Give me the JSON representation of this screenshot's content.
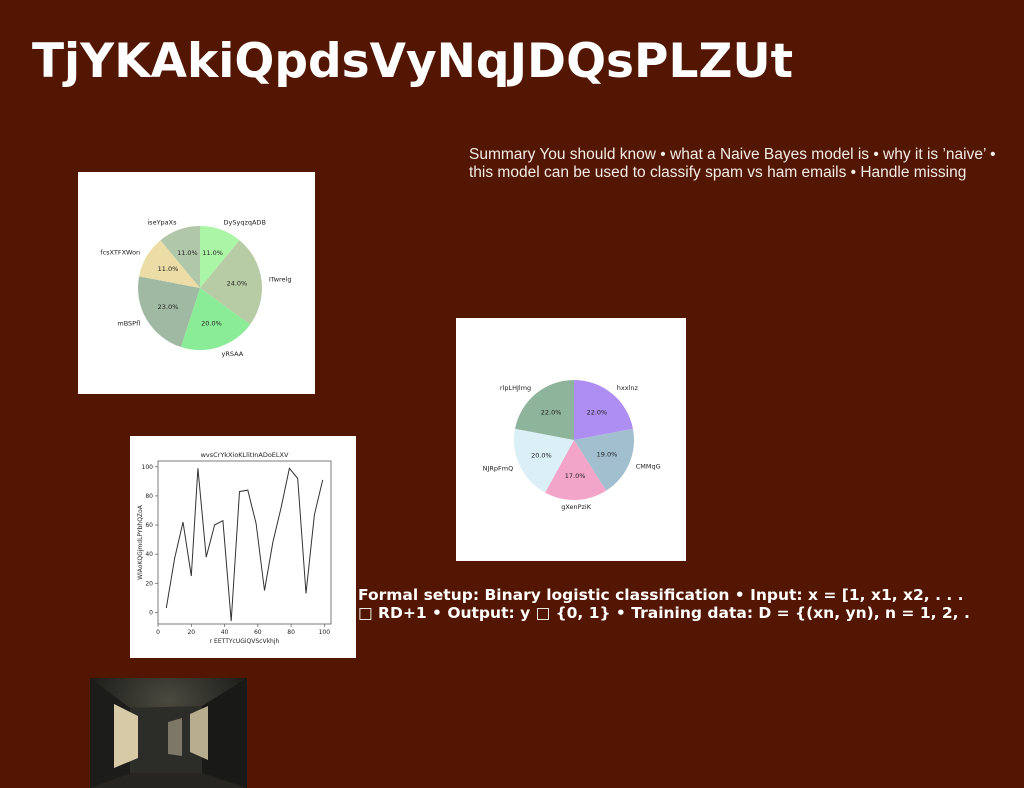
{
  "title": "TjYKAkiQpdsVyNqJDQsPLZUt",
  "summary_lines": [
    "Summary You should know • what a Naive Bayes model is • why it is ’naive’ •",
    "this model can be used to classify spam vs ham emails • Handle missing"
  ],
  "formal_lines": [
    "Formal setup: Binary logistic classification • Input: x = [1, x1, x2, . . .",
    "□ RD+1 • Output: y □ {0, 1} • Training data: D = {(xn, yn), n = 1, 2, ."
  ],
  "chart_data": [
    {
      "type": "pie",
      "title": "",
      "slices": [
        {
          "label": "DySyqzqADB",
          "value": 11.0,
          "pct_label": "11.0%",
          "color": "#aaf5a6"
        },
        {
          "label": "ITwrelg",
          "value": 24.0,
          "pct_label": "24.0%",
          "color": "#b7cca4"
        },
        {
          "label": "yRSAA",
          "value": 20.0,
          "pct_label": "20.0%",
          "color": "#8bec98"
        },
        {
          "label": "mBSPfl",
          "value": 23.0,
          "pct_label": "23.0%",
          "color": "#a0b9a2"
        },
        {
          "label": "fcsXTFXWon",
          "value": 11.0,
          "pct_label": "11.0%",
          "color": "#ecdda6"
        },
        {
          "label": "iseYpaXs",
          "value": 11.0,
          "pct_label": "11.0%",
          "color": "#b0c7a9"
        }
      ]
    },
    {
      "type": "pie",
      "title": "",
      "slices": [
        {
          "label": "hxxlnz",
          "value": 22.0,
          "pct_label": "22.0%",
          "color": "#ae8ef2"
        },
        {
          "label": "CMMqG",
          "value": 19.0,
          "pct_label": "19.0%",
          "color": "#a1bfcf"
        },
        {
          "label": "gXenPziK",
          "value": 17.0,
          "pct_label": "17.0%",
          "color": "#f2a5c8"
        },
        {
          "label": "NJRpFmQ",
          "value": 20.0,
          "pct_label": "20.0%",
          "color": "#dbeff7"
        },
        {
          "label": "rlpLHJlmg",
          "value": 22.0,
          "pct_label": "22.0%",
          "color": "#8fb49c"
        }
      ]
    },
    {
      "type": "line",
      "title": "wvsCrYkXioKLlitInADoELXV",
      "xlabel": "r EETTYcUGiQVScVkhjh",
      "ylabel": "WlAoKQGjmdLPYbhQZoA",
      "xlim": [
        0,
        104
      ],
      "ylim": [
        -8,
        104
      ],
      "xticks": [
        0,
        20,
        40,
        60,
        80,
        100
      ],
      "yticks": [
        0,
        20,
        40,
        60,
        80,
        100
      ],
      "grid": false,
      "series": [
        {
          "color": "#333333",
          "x": [
            5,
            10,
            15,
            20,
            24,
            29,
            34,
            39,
            44,
            49,
            54,
            59,
            64,
            69,
            74,
            79,
            84,
            89,
            94,
            99
          ],
          "y": [
            3,
            37,
            62,
            25,
            99,
            38,
            60,
            63,
            -6,
            83,
            84,
            61,
            15,
            48,
            72,
            99,
            92,
            13,
            67,
            91
          ]
        }
      ]
    }
  ]
}
